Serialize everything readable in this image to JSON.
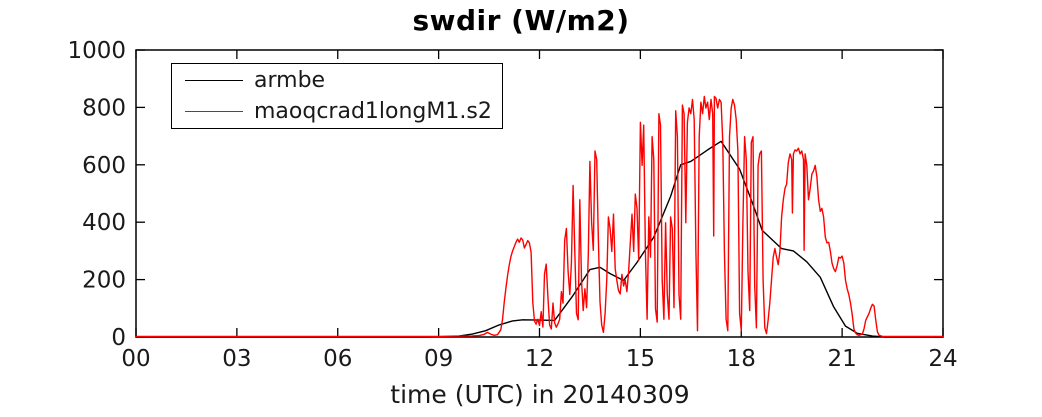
{
  "title": "swdir  (W/m2)",
  "x_axis_label": "time (UTC) in 20140309",
  "colors": {
    "armbe": "#000000",
    "maoqcrad": "#ff0000",
    "axis": "#000000",
    "tick_label": "#1a1a1a"
  },
  "legend": {
    "items": [
      {
        "label": "armbe",
        "color": "#000000"
      },
      {
        "label": "maoqcrad1longM1.s2",
        "color": "#ff0000"
      }
    ]
  },
  "chart_data": {
    "type": "line",
    "title": "swdir  (W/m2)",
    "xlabel": "time (UTC) in 20140309",
    "ylabel": "",
    "xlim": [
      0,
      24
    ],
    "ylim": [
      0,
      1000
    ],
    "grid": false,
    "legend_position": "top-left",
    "xticks": {
      "values": [
        0,
        3,
        6,
        9,
        12,
        15,
        18,
        21,
        24
      ],
      "labels": [
        "00",
        "03",
        "06",
        "09",
        "12",
        "15",
        "18",
        "21",
        "24"
      ]
    },
    "yticks": {
      "values": [
        0,
        200,
        400,
        600,
        800,
        1000
      ],
      "labels": [
        "0",
        "200",
        "400",
        "600",
        "800",
        "1000"
      ]
    },
    "series": [
      {
        "name": "armbe",
        "color": "#000000",
        "points": [
          [
            0,
            0
          ],
          [
            8.5,
            0
          ],
          [
            9.2,
            1
          ],
          [
            9.6,
            3
          ],
          [
            10.0,
            10
          ],
          [
            10.4,
            22
          ],
          [
            10.8,
            42
          ],
          [
            11.2,
            56
          ],
          [
            11.5,
            60
          ],
          [
            12.0,
            59
          ],
          [
            12.45,
            58
          ],
          [
            13.0,
            145
          ],
          [
            13.5,
            235
          ],
          [
            13.8,
            243
          ],
          [
            14.1,
            221
          ],
          [
            14.5,
            197
          ],
          [
            14.9,
            260
          ],
          [
            15.4,
            348
          ],
          [
            15.9,
            490
          ],
          [
            16.2,
            600
          ],
          [
            16.5,
            612
          ],
          [
            17.0,
            652
          ],
          [
            17.4,
            682
          ],
          [
            17.95,
            585
          ],
          [
            18.35,
            462
          ],
          [
            18.62,
            372
          ],
          [
            19.2,
            308
          ],
          [
            19.55,
            300
          ],
          [
            19.95,
            262
          ],
          [
            20.35,
            208
          ],
          [
            20.75,
            105
          ],
          [
            21.1,
            38
          ],
          [
            21.45,
            13
          ],
          [
            21.9,
            3
          ],
          [
            22.3,
            0
          ],
          [
            23.0,
            0
          ],
          [
            24,
            0
          ]
        ]
      },
      {
        "name": "maoqcrad1longM1.s2",
        "color": "#ff0000",
        "points": [
          [
            0,
            2
          ],
          [
            2,
            2
          ],
          [
            4,
            2
          ],
          [
            6,
            2
          ],
          [
            8,
            2
          ],
          [
            9,
            2
          ],
          [
            9.5,
            3
          ],
          [
            10.0,
            4
          ],
          [
            10.2,
            5
          ],
          [
            10.35,
            9
          ],
          [
            10.45,
            16
          ],
          [
            10.55,
            10
          ],
          [
            10.65,
            6
          ],
          [
            10.75,
            8
          ],
          [
            10.85,
            25
          ],
          [
            10.9,
            60
          ],
          [
            10.95,
            120
          ],
          [
            11.0,
            170
          ],
          [
            11.05,
            215
          ],
          [
            11.1,
            250
          ],
          [
            11.15,
            280
          ],
          [
            11.2,
            300
          ],
          [
            11.25,
            315
          ],
          [
            11.3,
            330
          ],
          [
            11.35,
            341
          ],
          [
            11.4,
            330
          ],
          [
            11.45,
            345
          ],
          [
            11.5,
            338
          ],
          [
            11.55,
            310
          ],
          [
            11.6,
            322
          ],
          [
            11.65,
            336
          ],
          [
            11.7,
            328
          ],
          [
            11.75,
            295
          ],
          [
            11.8,
            120
          ],
          [
            11.85,
            55
          ],
          [
            11.9,
            45
          ],
          [
            11.95,
            62
          ],
          [
            12.0,
            40
          ],
          [
            12.05,
            88
          ],
          [
            12.1,
            35
          ],
          [
            12.15,
            220
          ],
          [
            12.2,
            254
          ],
          [
            12.25,
            140
          ],
          [
            12.3,
            42
          ],
          [
            12.35,
            28
          ],
          [
            12.4,
            118
          ],
          [
            12.45,
            50
          ],
          [
            12.5,
            34
          ],
          [
            12.55,
            46
          ],
          [
            12.6,
            62
          ],
          [
            12.65,
            158
          ],
          [
            12.7,
            118
          ],
          [
            12.75,
            338
          ],
          [
            12.8,
            378
          ],
          [
            12.85,
            228
          ],
          [
            12.9,
            148
          ],
          [
            12.95,
            258
          ],
          [
            13.0,
            528
          ],
          [
            13.05,
            298
          ],
          [
            13.1,
            82
          ],
          [
            13.15,
            60
          ],
          [
            13.2,
            478
          ],
          [
            13.25,
            198
          ],
          [
            13.3,
            92
          ],
          [
            13.35,
            168
          ],
          [
            13.4,
            102
          ],
          [
            13.45,
            288
          ],
          [
            13.5,
            612
          ],
          [
            13.55,
            400
          ],
          [
            13.6,
            302
          ],
          [
            13.65,
            648
          ],
          [
            13.7,
            618
          ],
          [
            13.75,
            348
          ],
          [
            13.8,
            122
          ],
          [
            13.85,
            42
          ],
          [
            13.9,
            16
          ],
          [
            13.95,
            82
          ],
          [
            14.0,
            202
          ],
          [
            14.05,
            418
          ],
          [
            14.1,
            378
          ],
          [
            14.15,
            298
          ],
          [
            14.2,
            428
          ],
          [
            14.25,
            238
          ],
          [
            14.3,
            198
          ],
          [
            14.35,
            162
          ],
          [
            14.4,
            150
          ],
          [
            14.45,
            218
          ],
          [
            14.5,
            178
          ],
          [
            14.55,
            198
          ],
          [
            14.6,
            158
          ],
          [
            14.65,
            228
          ],
          [
            14.7,
            328
          ],
          [
            14.75,
            428
          ],
          [
            14.8,
            298
          ],
          [
            14.85,
            498
          ],
          [
            14.9,
            448
          ],
          [
            14.95,
            268
          ],
          [
            15.0,
            748
          ],
          [
            15.05,
            598
          ],
          [
            15.1,
            738
          ],
          [
            15.15,
            298
          ],
          [
            15.2,
            62
          ],
          [
            15.25,
            418
          ],
          [
            15.3,
            278
          ],
          [
            15.35,
            698
          ],
          [
            15.4,
            618
          ],
          [
            15.45,
            98
          ],
          [
            15.5,
            52
          ],
          [
            15.55,
            778
          ],
          [
            15.6,
            738
          ],
          [
            15.65,
            198
          ],
          [
            15.7,
            62
          ],
          [
            15.75,
            398
          ],
          [
            15.8,
            148
          ],
          [
            15.85,
            62
          ],
          [
            15.9,
            418
          ],
          [
            15.95,
            378
          ],
          [
            16.0,
            102
          ],
          [
            16.05,
            788
          ],
          [
            16.1,
            698
          ],
          [
            16.15,
            148
          ],
          [
            16.2,
            62
          ],
          [
            16.25,
            808
          ],
          [
            16.3,
            778
          ],
          [
            16.35,
            398
          ],
          [
            16.4,
            748
          ],
          [
            16.45,
            798
          ],
          [
            16.5,
            778
          ],
          [
            16.55,
            828
          ],
          [
            16.6,
            758
          ],
          [
            16.65,
            298
          ],
          [
            16.7,
            22
          ],
          [
            16.75,
            698
          ],
          [
            16.8,
            818
          ],
          [
            16.85,
            778
          ],
          [
            16.9,
            838
          ],
          [
            16.95,
            798
          ],
          [
            17.0,
            818
          ],
          [
            17.05,
            758
          ],
          [
            17.1,
            828
          ],
          [
            17.15,
            778
          ],
          [
            17.18,
            352
          ],
          [
            17.2,
            838
          ],
          [
            17.25,
            832
          ],
          [
            17.3,
            798
          ],
          [
            17.35,
            828
          ],
          [
            17.4,
            818
          ],
          [
            17.45,
            678
          ],
          [
            17.5,
            298
          ],
          [
            17.55,
            62
          ],
          [
            17.6,
            22
          ],
          [
            17.65,
            698
          ],
          [
            17.7,
            798
          ],
          [
            17.75,
            828
          ],
          [
            17.8,
            808
          ],
          [
            17.85,
            758
          ],
          [
            17.9,
            648
          ],
          [
            17.95,
            82
          ],
          [
            18.0,
            22
          ],
          [
            18.05,
            398
          ],
          [
            18.1,
            698
          ],
          [
            18.15,
            618
          ],
          [
            18.2,
            228
          ],
          [
            18.25,
            92
          ],
          [
            18.3,
            678
          ],
          [
            18.35,
            698
          ],
          [
            18.4,
            178
          ],
          [
            18.45,
            32
          ],
          [
            18.5,
            598
          ],
          [
            18.55,
            638
          ],
          [
            18.6,
            648
          ],
          [
            18.65,
            198
          ],
          [
            18.7,
            32
          ],
          [
            18.75,
            12
          ],
          [
            18.8,
            58
          ],
          [
            18.85,
            118
          ],
          [
            18.9,
            198
          ],
          [
            18.95,
            278
          ],
          [
            19.0,
            308
          ],
          [
            19.05,
            278
          ],
          [
            19.1,
            252
          ],
          [
            19.15,
            298
          ],
          [
            19.2,
            418
          ],
          [
            19.25,
            478
          ],
          [
            19.3,
            518
          ],
          [
            19.35,
            532
          ],
          [
            19.4,
            608
          ],
          [
            19.45,
            638
          ],
          [
            19.5,
            618
          ],
          [
            19.52,
            432
          ],
          [
            19.55,
            638
          ],
          [
            19.6,
            652
          ],
          [
            19.65,
            648
          ],
          [
            19.7,
            658
          ],
          [
            19.75,
            638
          ],
          [
            19.8,
            648
          ],
          [
            19.85,
            618
          ],
          [
            19.87,
            302
          ],
          [
            19.9,
            638
          ],
          [
            19.95,
            598
          ],
          [
            20.0,
            478
          ],
          [
            20.05,
            518
          ],
          [
            20.1,
            568
          ],
          [
            20.15,
            578
          ],
          [
            20.2,
            598
          ],
          [
            20.25,
            558
          ],
          [
            20.3,
            478
          ],
          [
            20.35,
            438
          ],
          [
            20.4,
            448
          ],
          [
            20.45,
            418
          ],
          [
            20.5,
            348
          ],
          [
            20.55,
            328
          ],
          [
            20.6,
            330
          ],
          [
            20.65,
            298
          ],
          [
            20.7,
            258
          ],
          [
            20.75,
            238
          ],
          [
            20.8,
            228
          ],
          [
            20.85,
            248
          ],
          [
            20.9,
            278
          ],
          [
            20.95,
            275
          ],
          [
            21.0,
            282
          ],
          [
            21.05,
            258
          ],
          [
            21.1,
            198
          ],
          [
            21.15,
            168
          ],
          [
            21.2,
            148
          ],
          [
            21.25,
            118
          ],
          [
            21.3,
            78
          ],
          [
            21.35,
            28
          ],
          [
            21.4,
            14
          ],
          [
            21.45,
            8
          ],
          [
            21.5,
            6
          ],
          [
            21.55,
            8
          ],
          [
            21.6,
            10
          ],
          [
            21.65,
            28
          ],
          [
            21.7,
            58
          ],
          [
            21.75,
            70
          ],
          [
            21.8,
            82
          ],
          [
            21.85,
            100
          ],
          [
            21.9,
            114
          ],
          [
            21.95,
            108
          ],
          [
            22.0,
            58
          ],
          [
            22.05,
            18
          ],
          [
            22.1,
            6
          ],
          [
            22.2,
            2
          ],
          [
            22.5,
            2
          ],
          [
            23.0,
            2
          ],
          [
            23.5,
            2
          ],
          [
            24,
            2
          ]
        ]
      }
    ]
  }
}
